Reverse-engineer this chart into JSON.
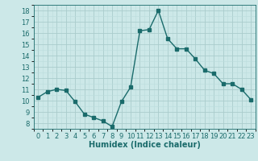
{
  "x": [
    0,
    1,
    2,
    3,
    4,
    5,
    6,
    7,
    8,
    9,
    10,
    11,
    12,
    13,
    14,
    15,
    16,
    17,
    18,
    19,
    20,
    21,
    22,
    23
  ],
  "y": [
    10.3,
    10.8,
    11.0,
    10.9,
    9.9,
    8.8,
    8.5,
    8.2,
    7.7,
    9.9,
    11.2,
    16.2,
    16.3,
    18.0,
    15.5,
    14.6,
    14.6,
    13.7,
    12.7,
    12.4,
    11.5,
    11.5,
    11.0,
    10.1
  ],
  "xlabel": "Humidex (Indice chaleur)",
  "bg_color": "#cce8e8",
  "line_color": "#1a6b6b",
  "grid_major_color": "#aacccc",
  "grid_minor_color": "#bbdddd",
  "xlim": [
    -0.5,
    23.5
  ],
  "ylim": [
    7.5,
    18.5
  ],
  "yticks": [
    8,
    9,
    10,
    11,
    12,
    13,
    14,
    15,
    16,
    17,
    18
  ],
  "xtick_labels": [
    "0",
    "1",
    "2",
    "3",
    "4",
    "5",
    "6",
    "7",
    "8",
    "9",
    "10",
    "11",
    "12",
    "13",
    "14",
    "15",
    "16",
    "17",
    "18",
    "19",
    "20",
    "21",
    "22",
    "23"
  ],
  "xlabel_fontsize": 7,
  "tick_fontsize": 6,
  "marker_size": 2.5,
  "line_width": 1.0
}
